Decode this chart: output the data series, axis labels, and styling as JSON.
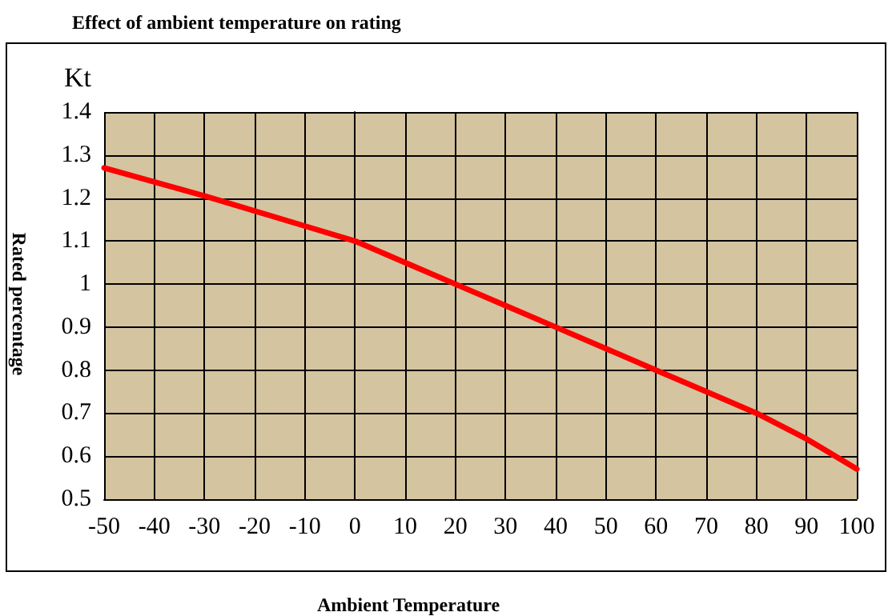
{
  "chart_data": {
    "type": "line",
    "title": "Effect of ambient temperature on rating",
    "xlabel": "Ambient Temperature",
    "ylabel": "Rated percentage",
    "annotations": [
      "Kt"
    ],
    "x": [
      -50,
      -30,
      -10,
      0,
      10,
      20,
      30,
      40,
      50,
      60,
      70,
      80,
      90,
      100
    ],
    "series": [
      {
        "color": "#ff0000",
        "values": [
          1.27,
          1.205,
          1.135,
          1.1,
          1.05,
          1.0,
          0.95,
          0.9,
          0.85,
          0.8,
          0.75,
          0.7,
          0.64,
          0.57
        ]
      }
    ],
    "xlim": [
      -50,
      100
    ],
    "xticks": [
      -50,
      -40,
      -30,
      -20,
      -10,
      0,
      10,
      20,
      30,
      40,
      50,
      60,
      70,
      80,
      90,
      100
    ],
    "ylim": [
      0.5,
      1.4
    ],
    "yticks": [
      0.5,
      0.6,
      0.7,
      0.8,
      0.9,
      1,
      1.1,
      1.2,
      1.3,
      1.4
    ],
    "grid": true,
    "marker": "none",
    "line_style": "solid"
  }
}
